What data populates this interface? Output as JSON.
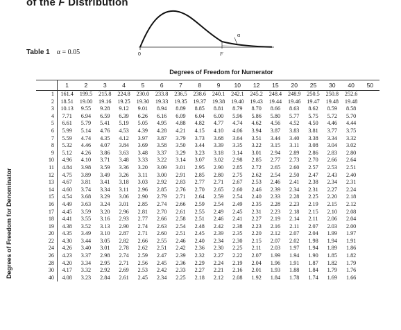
{
  "heading": {
    "prefix": "of the ",
    "italic": "F",
    "suffix": " Distribution"
  },
  "figure": {
    "alpha_label": "α",
    "zero_label": "0",
    "f_label": "F"
  },
  "table_label": {
    "name": "Table 1",
    "alpha_text": "α = 0.05"
  },
  "numerator_heading": "Degrees of Freedom for Numerator",
  "denominator_heading": "Degrees of Freedom for Denominator",
  "columns": [
    "1",
    "2",
    "3",
    "4",
    "5",
    "6",
    "7",
    "8",
    "9",
    "10",
    "12",
    "15",
    "20",
    "25",
    "30",
    "40",
    "50"
  ],
  "rows": [
    {
      "df": "1",
      "values": [
        "161.4",
        "199.5",
        "215.8",
        "224.8",
        "230.0",
        "233.8",
        "236.5",
        "238.6",
        "240.1",
        "242.1",
        "245.2",
        "248.4",
        "248.9",
        "250.5",
        "250.8",
        "252.6",
        ""
      ]
    },
    {
      "df": "2",
      "values": [
        "18.51",
        "19.00",
        "19.16",
        "19.25",
        "19.30",
        "19.33",
        "19.35",
        "19.37",
        "19.38",
        "19.40",
        "19.43",
        "19.44",
        "19.46",
        "19.47",
        "19.48",
        "19.48",
        ""
      ]
    },
    {
      "df": "3",
      "values": [
        "10.13",
        "9.55",
        "9.28",
        "9.12",
        "9.01",
        "8.94",
        "8.89",
        "8.85",
        "8.81",
        "8.79",
        "8.70",
        "8.66",
        "8.63",
        "8.62",
        "8.59",
        "8.58",
        ""
      ]
    },
    {
      "df": "4",
      "values": [
        "7.71",
        "6.94",
        "6.59",
        "6.39",
        "6.26",
        "6.16",
        "6.09",
        "6.04",
        "6.00",
        "5.96",
        "5.86",
        "5.80",
        "5.77",
        "5.75",
        "5.72",
        "5.70",
        ""
      ]
    },
    {
      "df": "5",
      "values": [
        "6.61",
        "5.79",
        "5.41",
        "5.19",
        "5.05",
        "4.95",
        "4.88",
        "4.82",
        "4.77",
        "4.74",
        "4.62",
        "4.56",
        "4.52",
        "4.50",
        "4.46",
        "4.44",
        ""
      ]
    },
    {
      "df": "6",
      "values": [
        "5.99",
        "5.14",
        "4.76",
        "4.53",
        "4.39",
        "4.28",
        "4.21",
        "4.15",
        "4.10",
        "4.06",
        "3.94",
        "3.87",
        "3.83",
        "3.81",
        "3.77",
        "3.75",
        ""
      ]
    },
    {
      "df": "7",
      "values": [
        "5.59",
        "4.74",
        "4.35",
        "4.12",
        "3.97",
        "3.87",
        "3.79",
        "3.73",
        "3.68",
        "3.64",
        "3.51",
        "3.44",
        "3.40",
        "3.38",
        "3.34",
        "3.32",
        ""
      ]
    },
    {
      "df": "8",
      "values": [
        "5.32",
        "4.46",
        "4.07",
        "3.84",
        "3.69",
        "3.58",
        "3.50",
        "3.44",
        "3.39",
        "3.35",
        "3.22",
        "3.15",
        "3.11",
        "3.08",
        "3.04",
        "3.02",
        ""
      ]
    },
    {
      "df": "9",
      "values": [
        "5.12",
        "4.26",
        "3.86",
        "3.63",
        "3.48",
        "3.37",
        "3.29",
        "3.23",
        "3.18",
        "3.14",
        "3.01",
        "2.94",
        "2.89",
        "2.86",
        "2.83",
        "2.80",
        ""
      ]
    },
    {
      "df": "10",
      "values": [
        "4.96",
        "4.10",
        "3.71",
        "3.48",
        "3.33",
        "3.22",
        "3.14",
        "3.07",
        "3.02",
        "2.98",
        "2.85",
        "2.77",
        "2.73",
        "2.70",
        "2.66",
        "2.64",
        ""
      ]
    },
    {
      "df": "11",
      "values": [
        "4.84",
        "3.98",
        "3.59",
        "3.36",
        "3.20",
        "3.09",
        "3.01",
        "2.95",
        "2.90",
        "2.85",
        "2.72",
        "2.65",
        "2.60",
        "2.57",
        "2.53",
        "2.51",
        ""
      ]
    },
    {
      "df": "12",
      "values": [
        "4.75",
        "3.89",
        "3.49",
        "3.26",
        "3.11",
        "3.00",
        "2.91",
        "2.85",
        "2.80",
        "2.75",
        "2.62",
        "2.54",
        "2.50",
        "2.47",
        "2.43",
        "2.40",
        ""
      ]
    },
    {
      "df": "13",
      "values": [
        "4.67",
        "3.81",
        "3.41",
        "3.18",
        "3.03",
        "2.92",
        "2.83",
        "2.77",
        "2.71",
        "2.67",
        "2.53",
        "2.46",
        "2.41",
        "2.38",
        "2.34",
        "2.31",
        ""
      ]
    },
    {
      "df": "14",
      "values": [
        "4.60",
        "3.74",
        "3.34",
        "3.11",
        "2.96",
        "2.85",
        "2.76",
        "2.70",
        "2.65",
        "2.60",
        "2.46",
        "2.39",
        "2.34",
        "2.31",
        "2.27",
        "2.24",
        ""
      ]
    },
    {
      "df": "15",
      "values": [
        "4.54",
        "3.68",
        "3.29",
        "3.06",
        "2.90",
        "2.79",
        "2.71",
        "2.64",
        "2.59",
        "2.54",
        "2.40",
        "2.33",
        "2.28",
        "2.25",
        "2.20",
        "2.18",
        ""
      ]
    },
    {
      "df": "16",
      "values": [
        "4.49",
        "3.63",
        "3.24",
        "3.01",
        "2.85",
        "2.74",
        "2.66",
        "2.59",
        "2.54",
        "2.49",
        "2.35",
        "2.28",
        "2.23",
        "2.19",
        "2.15",
        "2.12",
        ""
      ]
    },
    {
      "df": "17",
      "values": [
        "4.45",
        "3.59",
        "3.20",
        "2.96",
        "2.81",
        "2.70",
        "2.61",
        "2.55",
        "2.49",
        "2.45",
        "2.31",
        "2.23",
        "2.18",
        "2.15",
        "2.10",
        "2.08",
        ""
      ]
    },
    {
      "df": "18",
      "values": [
        "4.41",
        "3.55",
        "3.16",
        "2.93",
        "2.77",
        "2.66",
        "2.58",
        "2.51",
        "2.46",
        "2.41",
        "2.27",
        "2.19",
        "2.14",
        "2.11",
        "2.06",
        "2.04",
        ""
      ]
    },
    {
      "df": "19",
      "values": [
        "4.38",
        "3.52",
        "3.13",
        "2.90",
        "2.74",
        "2.63",
        "2.54",
        "2.48",
        "2.42",
        "2.38",
        "2.23",
        "2.16",
        "2.11",
        "2.07",
        "2.03",
        "2.00",
        ""
      ]
    },
    {
      "df": "20",
      "values": [
        "4.35",
        "3.49",
        "3.10",
        "2.87",
        "2.71",
        "2.60",
        "2.51",
        "2.45",
        "2.39",
        "2.35",
        "2.20",
        "2.12",
        "2.07",
        "2.04",
        "1.99",
        "1.97",
        ""
      ]
    },
    {
      "df": "22",
      "values": [
        "4.30",
        "3.44",
        "3.05",
        "2.82",
        "2.66",
        "2.55",
        "2.46",
        "2.40",
        "2.34",
        "2.30",
        "2.15",
        "2.07",
        "2.02",
        "1.98",
        "1.94",
        "1.91",
        ""
      ]
    },
    {
      "df": "24",
      "values": [
        "4.26",
        "3.40",
        "3.01",
        "2.78",
        "2.62",
        "2.51",
        "2.42",
        "2.36",
        "2.30",
        "2.25",
        "2.11",
        "2.03",
        "1.97",
        "1.94",
        "1.89",
        "1.86",
        ""
      ]
    },
    {
      "df": "26",
      "values": [
        "4.23",
        "3.37",
        "2.98",
        "2.74",
        "2.59",
        "2.47",
        "2.39",
        "2.32",
        "2.27",
        "2.22",
        "2.07",
        "1.99",
        "1.94",
        "1.90",
        "1.85",
        "1.82",
        ""
      ]
    },
    {
      "df": "28",
      "values": [
        "4.20",
        "3.34",
        "2.95",
        "2.71",
        "2.56",
        "2.45",
        "2.36",
        "2.29",
        "2.24",
        "2.19",
        "2.04",
        "1.96",
        "1.91",
        "1.87",
        "1.82",
        "1.79",
        ""
      ]
    },
    {
      "df": "30",
      "values": [
        "4.17",
        "3.32",
        "2.92",
        "2.69",
        "2.53",
        "2.42",
        "2.33",
        "2.27",
        "2.21",
        "2.16",
        "2.01",
        "1.93",
        "1.88",
        "1.84",
        "1.79",
        "1.76",
        ""
      ]
    },
    {
      "df": "40",
      "values": [
        "4.08",
        "3.23",
        "2.84",
        "2.61",
        "2.45",
        "2.34",
        "2.25",
        "2.18",
        "2.12",
        "2.08",
        "1.92",
        "1.84",
        "1.78",
        "1.74",
        "1.69",
        "1.66",
        ""
      ]
    }
  ]
}
